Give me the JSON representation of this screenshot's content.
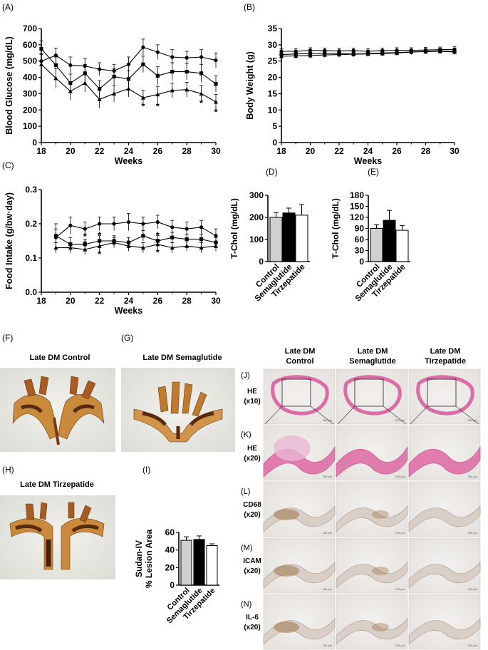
{
  "panel_labels": {
    "A": "(A)",
    "B": "(B)",
    "C": "(C)",
    "D": "(D)",
    "E": "(E)",
    "F": "(F)",
    "G": "(G)",
    "H": "(H)",
    "I": "(I)",
    "J": "(J)",
    "K": "(K)",
    "L": "(L)",
    "M": "(M)",
    "N": "(N)"
  },
  "photo_titles": {
    "F": "Late DM Control",
    "G": "Late DM Semaglutide",
    "H": "Late DM Tirzepatide"
  },
  "histology": {
    "columns": [
      {
        "line1": "Late DM",
        "line2": "Control"
      },
      {
        "line1": "Late DM",
        "line2": "Semaglutide"
      },
      {
        "line1": "Late DM",
        "line2": "Tirzepatide"
      }
    ],
    "rows": [
      {
        "stain": "HE",
        "mag": "(x10)"
      },
      {
        "stain": "HE",
        "mag": "(x20)"
      },
      {
        "stain": "CD68",
        "mag": "(x20)"
      },
      {
        "stain": "ICAM",
        "mag": "(x20)"
      },
      {
        "stain": "IL-6",
        "mag": "(x20)"
      }
    ],
    "scale_labels": {
      "x10": "200 μm",
      "x20": "100 μm"
    }
  },
  "chart_data": [
    {
      "id": "A",
      "type": "line",
      "xlabel": "Weeks",
      "ylabel": "Blood Glucose (mg/dL)",
      "xlim": [
        18,
        30
      ],
      "ylim": [
        0,
        700
      ],
      "xticks": [
        18,
        20,
        22,
        24,
        26,
        28,
        30
      ],
      "yticks": [
        0,
        100,
        200,
        300,
        400,
        500,
        600,
        700
      ],
      "series": [
        {
          "marker": "circle",
          "x": [
            18,
            19,
            20,
            21,
            22,
            23,
            24,
            25,
            26,
            27,
            28,
            29,
            30
          ],
          "y": [
            500,
            535,
            475,
            470,
            450,
            440,
            480,
            585,
            555,
            525,
            520,
            525,
            505
          ],
          "err": [
            45,
            45,
            50,
            45,
            40,
            40,
            45,
            50,
            45,
            45,
            40,
            45,
            45
          ]
        },
        {
          "marker": "square",
          "x": [
            18,
            19,
            20,
            21,
            22,
            23,
            24,
            25,
            26,
            27,
            28,
            29,
            30
          ],
          "y": [
            575,
            475,
            365,
            425,
            330,
            405,
            390,
            480,
            410,
            435,
            435,
            425,
            360
          ],
          "err": [
            50,
            50,
            55,
            55,
            50,
            50,
            50,
            50,
            55,
            55,
            50,
            55,
            50
          ]
        },
        {
          "marker": "triangle",
          "x": [
            18,
            19,
            20,
            21,
            22,
            23,
            24,
            25,
            26,
            27,
            28,
            29,
            30
          ],
          "y": [
            480,
            395,
            315,
            365,
            265,
            300,
            330,
            275,
            295,
            320,
            325,
            300,
            250
          ],
          "err": [
            60,
            60,
            55,
            55,
            55,
            50,
            50,
            45,
            50,
            45,
            45,
            50,
            45
          ]
        }
      ],
      "annotations": [
        {
          "x": 25,
          "y": 230,
          "text": "*"
        },
        {
          "x": 26,
          "y": 230,
          "text": "*"
        },
        {
          "x": 29,
          "y": 250,
          "text": "*"
        },
        {
          "x": 30,
          "y": 195,
          "text": "*"
        }
      ]
    },
    {
      "id": "B",
      "type": "line",
      "xlabel": "Weeks",
      "ylabel": "Body Weight (g)",
      "xlim": [
        18,
        30
      ],
      "ylim": [
        0,
        35
      ],
      "xticks": [
        18,
        20,
        22,
        24,
        26,
        28,
        30
      ],
      "yticks": [
        0,
        5,
        10,
        15,
        20,
        25,
        30,
        35
      ],
      "series": [
        {
          "marker": "circle",
          "x": [
            18,
            19,
            20,
            21,
            22,
            23,
            24,
            25,
            26,
            27,
            28,
            29,
            30
          ],
          "y": [
            28,
            28,
            28.3,
            28.2,
            28.1,
            28.2,
            28,
            28.2,
            28.3,
            28.3,
            28.4,
            28.5,
            28.6
          ],
          "err": [
            0.8,
            0.8,
            0.8,
            0.8,
            0.8,
            0.8,
            0.8,
            0.8,
            0.8,
            0.8,
            0.8,
            0.8,
            0.8
          ]
        },
        {
          "marker": "square",
          "x": [
            18,
            19,
            20,
            21,
            22,
            23,
            24,
            25,
            26,
            27,
            28,
            29,
            30
          ],
          "y": [
            27,
            27.2,
            27.3,
            27.4,
            27.3,
            27.2,
            27.3,
            27.5,
            27.6,
            27.8,
            28,
            28.1,
            28
          ],
          "err": [
            0.8,
            0.8,
            0.8,
            0.8,
            0.8,
            0.8,
            0.8,
            0.8,
            0.8,
            0.8,
            0.8,
            0.8,
            0.8
          ]
        },
        {
          "marker": "triangle",
          "x": [
            18,
            19,
            20,
            21,
            22,
            23,
            24,
            25,
            26,
            27,
            28,
            29,
            30
          ],
          "y": [
            26.5,
            26.6,
            26.7,
            26.9,
            27,
            27.1,
            27.2,
            27.3,
            27.5,
            27.8,
            27.9,
            28,
            27.8
          ],
          "err": [
            0.8,
            0.8,
            0.8,
            0.8,
            0.8,
            0.8,
            0.8,
            0.8,
            0.8,
            0.8,
            0.8,
            0.8,
            0.8
          ]
        }
      ]
    },
    {
      "id": "C",
      "type": "line",
      "xlabel": "Weeks",
      "ylabel": "Food Intake (g/bw·day)",
      "xlim": [
        18,
        30
      ],
      "ylim": [
        0,
        0.3
      ],
      "xticks": [
        18,
        20,
        22,
        24,
        26,
        28,
        30
      ],
      "yticks": [
        0.0,
        0.1,
        0.2,
        0.3
      ],
      "series": [
        {
          "marker": "circle",
          "x": [
            19,
            20,
            21,
            22,
            23,
            24,
            25,
            26,
            27,
            28,
            29,
            30
          ],
          "y": [
            0.16,
            0.195,
            0.185,
            0.2,
            0.2,
            0.205,
            0.2,
            0.205,
            0.19,
            0.185,
            0.19,
            0.165
          ],
          "err": [
            0.04,
            0.025,
            0.02,
            0.02,
            0.02,
            0.025,
            0.02,
            0.02,
            0.02,
            0.02,
            0.02,
            0.02
          ]
        },
        {
          "marker": "square",
          "x": [
            19,
            20,
            21,
            22,
            23,
            24,
            25,
            26,
            27,
            28,
            29,
            30
          ],
          "y": [
            0.165,
            0.14,
            0.14,
            0.15,
            0.15,
            0.145,
            0.165,
            0.15,
            0.16,
            0.155,
            0.155,
            0.145
          ],
          "err": [
            0.02,
            0.02,
            0.015,
            0.015,
            0.015,
            0.015,
            0.015,
            0.015,
            0.015,
            0.015,
            0.015,
            0.015
          ]
        },
        {
          "marker": "triangle",
          "x": [
            19,
            20,
            21,
            22,
            23,
            24,
            25,
            26,
            27,
            28,
            29,
            30
          ],
          "y": [
            0.13,
            0.13,
            0.125,
            0.135,
            0.145,
            0.135,
            0.13,
            0.14,
            0.13,
            0.135,
            0.13,
            0.135
          ],
          "err": [
            0.015,
            0.015,
            0.015,
            0.015,
            0.015,
            0.015,
            0.015,
            0.015,
            0.015,
            0.015,
            0.015,
            0.015
          ]
        }
      ],
      "annotations": [
        {
          "x": 21,
          "y": 0.167,
          "text": "*"
        },
        {
          "x": 21,
          "y": 0.145,
          "text": "*"
        },
        {
          "x": 22,
          "y": 0.17,
          "text": "*"
        },
        {
          "x": 22,
          "y": 0.115,
          "text": "*"
        },
        {
          "x": 26,
          "y": 0.17,
          "text": "*"
        },
        {
          "x": 26,
          "y": 0.12,
          "text": "*"
        }
      ]
    },
    {
      "id": "D",
      "type": "bar",
      "ylabel": "T-Chol (mg/dL)",
      "categories": [
        "Control",
        "Semaglutide",
        "Tirzepatide"
      ],
      "values": [
        200,
        220,
        210
      ],
      "err": [
        22,
        22,
        48
      ],
      "fills": [
        "#d0d0d0",
        "#000000",
        "#ffffff"
      ],
      "ylim": [
        0,
        300
      ],
      "yticks": [
        0,
        100,
        200,
        300
      ]
    },
    {
      "id": "E",
      "type": "bar",
      "ylabel": "T-Chol (mg/dL)",
      "categories": [
        "Control",
        "Semaglutide",
        "Tirzepatide"
      ],
      "values": [
        90,
        112,
        85
      ],
      "err": [
        10,
        27,
        13
      ],
      "fills": [
        "#d0d0d0",
        "#000000",
        "#ffffff"
      ],
      "ylim": [
        0,
        180
      ],
      "yticks": [
        0,
        30,
        60,
        90,
        120,
        150,
        180
      ]
    },
    {
      "id": "I",
      "type": "bar",
      "ylabel": "Sudan-IV\n% Lesion Area",
      "categories": [
        "Control",
        "Semaglutide",
        "Tirzepatide"
      ],
      "values": [
        51,
        52,
        45
      ],
      "err": [
        4,
        4,
        2
      ],
      "fills": [
        "#d0d0d0",
        "#000000",
        "#ffffff"
      ],
      "ylim": [
        0,
        60
      ],
      "yticks": [
        0,
        20,
        40,
        60
      ]
    }
  ]
}
